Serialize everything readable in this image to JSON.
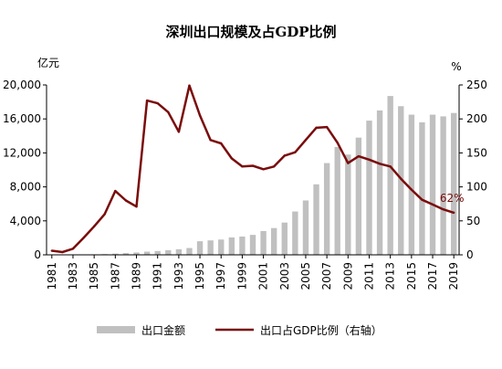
{
  "chart_data": {
    "type": "bar+line",
    "title": "深圳出口规模及占GDP比例",
    "left_unit": "亿元",
    "right_unit": "%",
    "categories": [
      "1981",
      "1982",
      "1983",
      "1984",
      "1985",
      "1986",
      "1987",
      "1988",
      "1989",
      "1990",
      "1991",
      "1992",
      "1993",
      "1994",
      "1995",
      "1996",
      "1997",
      "1998",
      "1999",
      "2000",
      "2001",
      "2002",
      "2003",
      "2004",
      "2005",
      "2006",
      "2007",
      "2008",
      "2009",
      "2010",
      "2011",
      "2012",
      "2013",
      "2014",
      "2015",
      "2016",
      "2017",
      "2018",
      "2019"
    ],
    "x_tick_labels": [
      "1981",
      "1983",
      "1985",
      "1987",
      "1989",
      "1991",
      "1993",
      "1995",
      "1997",
      "1999",
      "2001",
      "2003",
      "2005",
      "2007",
      "2009",
      "2011",
      "2013",
      "2015",
      "2017",
      "2019"
    ],
    "y_left": {
      "min": 0,
      "max": 20000,
      "ticks": [
        0,
        4000,
        8000,
        12000,
        16000,
        20000
      ],
      "tick_labels": [
        "0",
        "4,000",
        "8,000",
        "12,000",
        "16,000",
        "20,000"
      ]
    },
    "y_right": {
      "min": 0,
      "max": 250,
      "ticks": [
        0,
        50,
        100,
        150,
        200,
        250
      ],
      "tick_labels": [
        "0",
        "50",
        "100",
        "150",
        "200",
        "250"
      ]
    },
    "grid": false,
    "legend_position": "bottom",
    "series": [
      {
        "name": "出口金额",
        "kind": "bar",
        "axis": "left",
        "color": "#c0c0c0",
        "values": [
          2,
          5,
          10,
          30,
          60,
          90,
          140,
          200,
          280,
          380,
          450,
          550,
          650,
          800,
          1600,
          1700,
          1800,
          2050,
          2150,
          2350,
          2800,
          3150,
          3800,
          5100,
          6400,
          8300,
          10800,
          12700,
          11800,
          13800,
          15800,
          17000,
          18700,
          17500,
          16500,
          15600,
          16500,
          16300,
          16700
        ]
      },
      {
        "name": "出口占GDP比例（右轴）",
        "kind": "line",
        "axis": "right",
        "color": "#7a0c0c",
        "values": [
          6,
          4,
          9,
          25,
          42,
          60,
          94,
          80,
          71,
          227,
          223,
          210,
          181,
          249,
          205,
          169,
          164,
          142,
          130,
          131,
          126,
          130,
          146,
          151,
          169,
          187,
          188,
          165,
          135,
          145,
          140,
          134,
          130,
          112,
          96,
          81,
          74,
          67,
          62
        ]
      }
    ],
    "annotation": {
      "text": "62%",
      "series_index": 1,
      "point_index": 38
    }
  }
}
